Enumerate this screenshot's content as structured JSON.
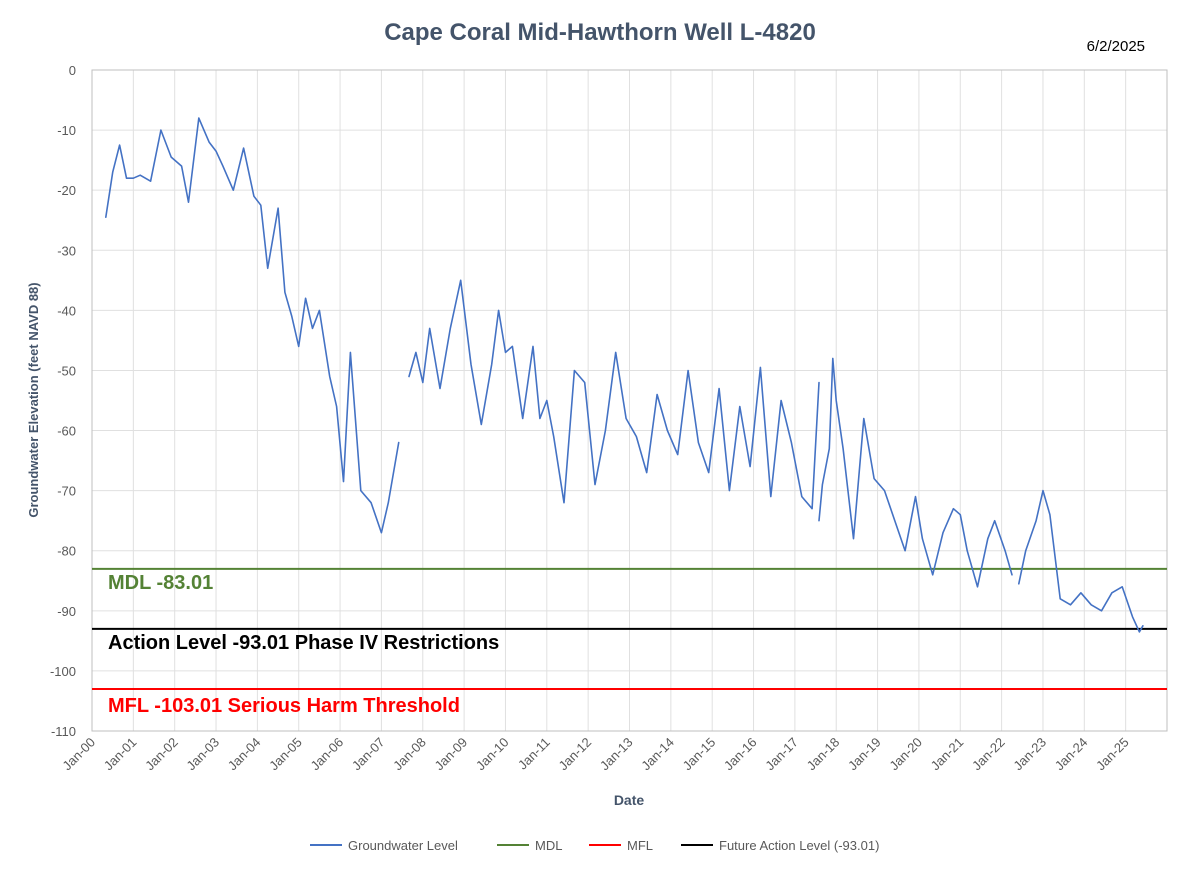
{
  "chart_data": {
    "type": "line",
    "title": "Cape Coral Mid-Hawthorn Well L-4820",
    "date_label": "6/2/2025",
    "xlabel": "Date",
    "ylabel": "Groundwater Elevation (feet NAVD 88)",
    "ylim": [
      -110,
      0
    ],
    "xlim": [
      "2000-01",
      "2026-01"
    ],
    "grid": true,
    "legend_position": "bottom",
    "y_ticks": [
      "0",
      "-10",
      "-20",
      "-30",
      "-40",
      "-50",
      "-60",
      "-70",
      "-80",
      "-90",
      "-100",
      "-110"
    ],
    "x_ticks": [
      "Jan-00",
      "Jan-01",
      "Jan-02",
      "Jan-03",
      "Jan-04",
      "Jan-05",
      "Jan-06",
      "Jan-07",
      "Jan-08",
      "Jan-09",
      "Jan-10",
      "Jan-11",
      "Jan-12",
      "Jan-13",
      "Jan-14",
      "Jan-15",
      "Jan-16",
      "Jan-17",
      "Jan-18",
      "Jan-19",
      "Jan-20",
      "Jan-21",
      "Jan-22",
      "Jan-23",
      "Jan-24",
      "Jan-25"
    ],
    "reference_lines": [
      {
        "name": "MDL",
        "value": -83.01,
        "color": "#548235",
        "annotation": "MDL  -83.01"
      },
      {
        "name": "Future Action Level (-93.01)",
        "value": -93.01,
        "color": "#000000",
        "annotation": "Action Level  -93.01  Phase IV Restrictions"
      },
      {
        "name": "MFL",
        "value": -103.01,
        "color": "#ff0000",
        "annotation": "MFL  -103.01  Serious Harm Threshold"
      }
    ],
    "series": [
      {
        "name": "Groundwater Level",
        "color": "#4472c4",
        "segments": [
          {
            "x": [
              "2000-05",
              "2000-07",
              "2000-09",
              "2000-11",
              "2001-01",
              "2001-03",
              "2001-06",
              "2001-09",
              "2001-12",
              "2002-03",
              "2002-05",
              "2002-08",
              "2002-11",
              "2003-01",
              "2003-03",
              "2003-06",
              "2003-09",
              "2003-12",
              "2004-02",
              "2004-04",
              "2004-07",
              "2004-09",
              "2004-11",
              "2005-01",
              "2005-03",
              "2005-05",
              "2005-07",
              "2005-10",
              "2005-12",
              "2006-02",
              "2006-04",
              "2006-07",
              "2006-10",
              "2007-01",
              "2007-03",
              "2007-06"
            ],
            "y": [
              -24.5,
              -17,
              -12.5,
              -18,
              -18,
              -17.5,
              -18.5,
              -10,
              -14.5,
              -16,
              -22,
              -8,
              -12,
              -13.5,
              -16,
              -20,
              -13,
              -21,
              -22.5,
              -33,
              -23,
              -37,
              -41,
              -46,
              -38,
              -43,
              -40,
              -51,
              -56,
              -68.5,
              -47,
              -70,
              -72,
              -77,
              -72,
              -62
            ]
          },
          {
            "x": [
              "2007-09",
              "2007-11",
              "2008-01",
              "2008-03",
              "2008-06",
              "2008-09",
              "2008-12",
              "2009-03",
              "2009-06",
              "2009-09",
              "2009-11",
              "2010-01",
              "2010-03",
              "2010-06",
              "2010-09",
              "2010-11",
              "2011-01",
              "2011-03",
              "2011-06",
              "2011-09",
              "2011-12",
              "2012-03",
              "2012-06",
              "2012-09",
              "2012-12",
              "2013-03",
              "2013-06",
              "2013-09",
              "2013-12",
              "2014-03",
              "2014-06",
              "2014-09",
              "2014-12",
              "2015-03",
              "2015-06",
              "2015-09",
              "2015-12",
              "2016-03",
              "2016-06",
              "2016-09",
              "2016-12",
              "2017-03",
              "2017-06",
              "2017-08"
            ],
            "y": [
              -51,
              -47,
              -52,
              -43,
              -53,
              -43,
              -35,
              -49,
              -59,
              -49,
              -40,
              -47,
              -46,
              -58,
              -46,
              -58,
              -55,
              -61,
              -72,
              -50,
              -52,
              -69,
              -60,
              -47,
              -58,
              -61,
              -67,
              -54,
              -60,
              -64,
              -50,
              -62,
              -67,
              -53,
              -70,
              -56,
              -66,
              -49.5,
              -71,
              -55,
              -62,
              -71,
              -73,
              -52
            ]
          },
          {
            "x": [
              "2017-08",
              "2017-09",
              "2017-11",
              "2017-12",
              "2018-01",
              "2018-03",
              "2018-06",
              "2018-09",
              "2018-12",
              "2019-03",
              "2019-06",
              "2019-09",
              "2019-12",
              "2020-02",
              "2020-05",
              "2020-08",
              "2020-11",
              "2021-01",
              "2021-03",
              "2021-06",
              "2021-09",
              "2021-11",
              "2022-02",
              "2022-04"
            ],
            "y": [
              -75,
              -69,
              -63,
              -48,
              -55,
              -63,
              -78,
              -58,
              -68,
              -70,
              -75,
              -80,
              -71,
              -78,
              -84,
              -77,
              -73,
              -74,
              -80,
              -86,
              -78,
              -75,
              -80,
              -84
            ]
          },
          {
            "x": [
              "2022-06",
              "2022-08",
              "2022-11",
              "2023-01",
              "2023-03",
              "2023-06",
              "2023-09",
              "2023-12",
              "2024-03",
              "2024-06",
              "2024-09",
              "2024-12",
              "2025-03",
              "2025-05",
              "2025-06"
            ],
            "y": [
              -85.5,
              -80,
              -75,
              -70,
              -74,
              -88,
              -89,
              -87,
              -89,
              -90,
              -87,
              -86,
              -91,
              -93.5,
              -92.5
            ]
          }
        ]
      },
      {
        "name": "MDL",
        "color": "#548235",
        "y_constant": -83.01
      },
      {
        "name": "MFL",
        "color": "#ff0000",
        "y_constant": -103.01
      },
      {
        "name": "Future Action Level (-93.01)",
        "color": "#000000",
        "y_constant": -93.01
      }
    ]
  }
}
